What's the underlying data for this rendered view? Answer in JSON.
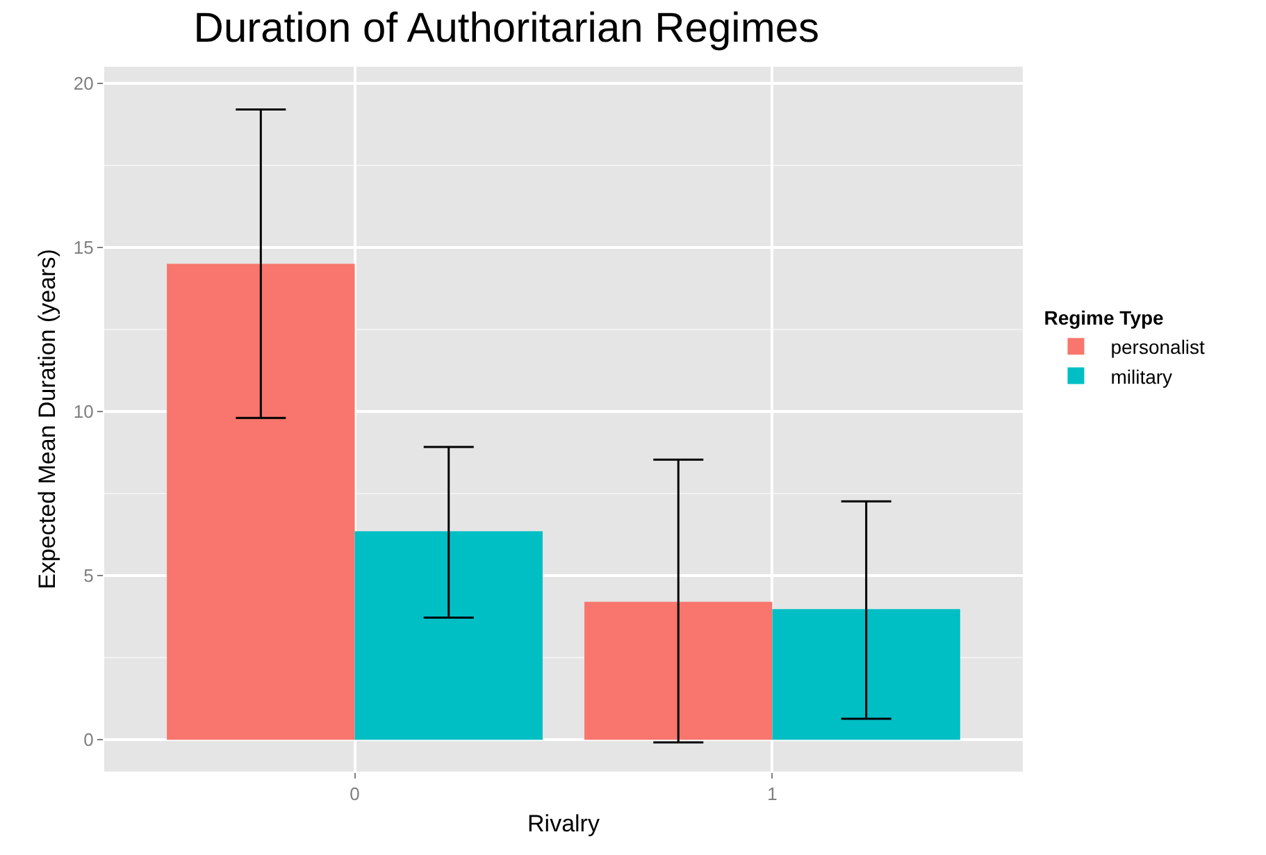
{
  "chart_data": {
    "type": "bar",
    "title": "Duration of Authoritarian Regimes",
    "xlabel": "Rivalry",
    "ylabel": "Expected Mean Duration (years)",
    "legend_title": "Regime Type",
    "categories": [
      "0",
      "1"
    ],
    "series": [
      {
        "name": "personalist",
        "color": "#f8766d",
        "values": [
          14.5,
          4.2
        ],
        "errors": [
          [
            9.8,
            19.2
          ],
          [
            -0.08,
            8.53
          ]
        ]
      },
      {
        "name": "military",
        "color": "#00bfc4",
        "values": [
          6.35,
          3.98
        ],
        "errors": [
          [
            3.72,
            8.92
          ],
          [
            0.64,
            7.26
          ]
        ]
      }
    ],
    "ylim": [
      -0.97,
      20.5
    ],
    "yticks": [
      0,
      5,
      10,
      15,
      20
    ],
    "grid": true,
    "legend": "right"
  }
}
